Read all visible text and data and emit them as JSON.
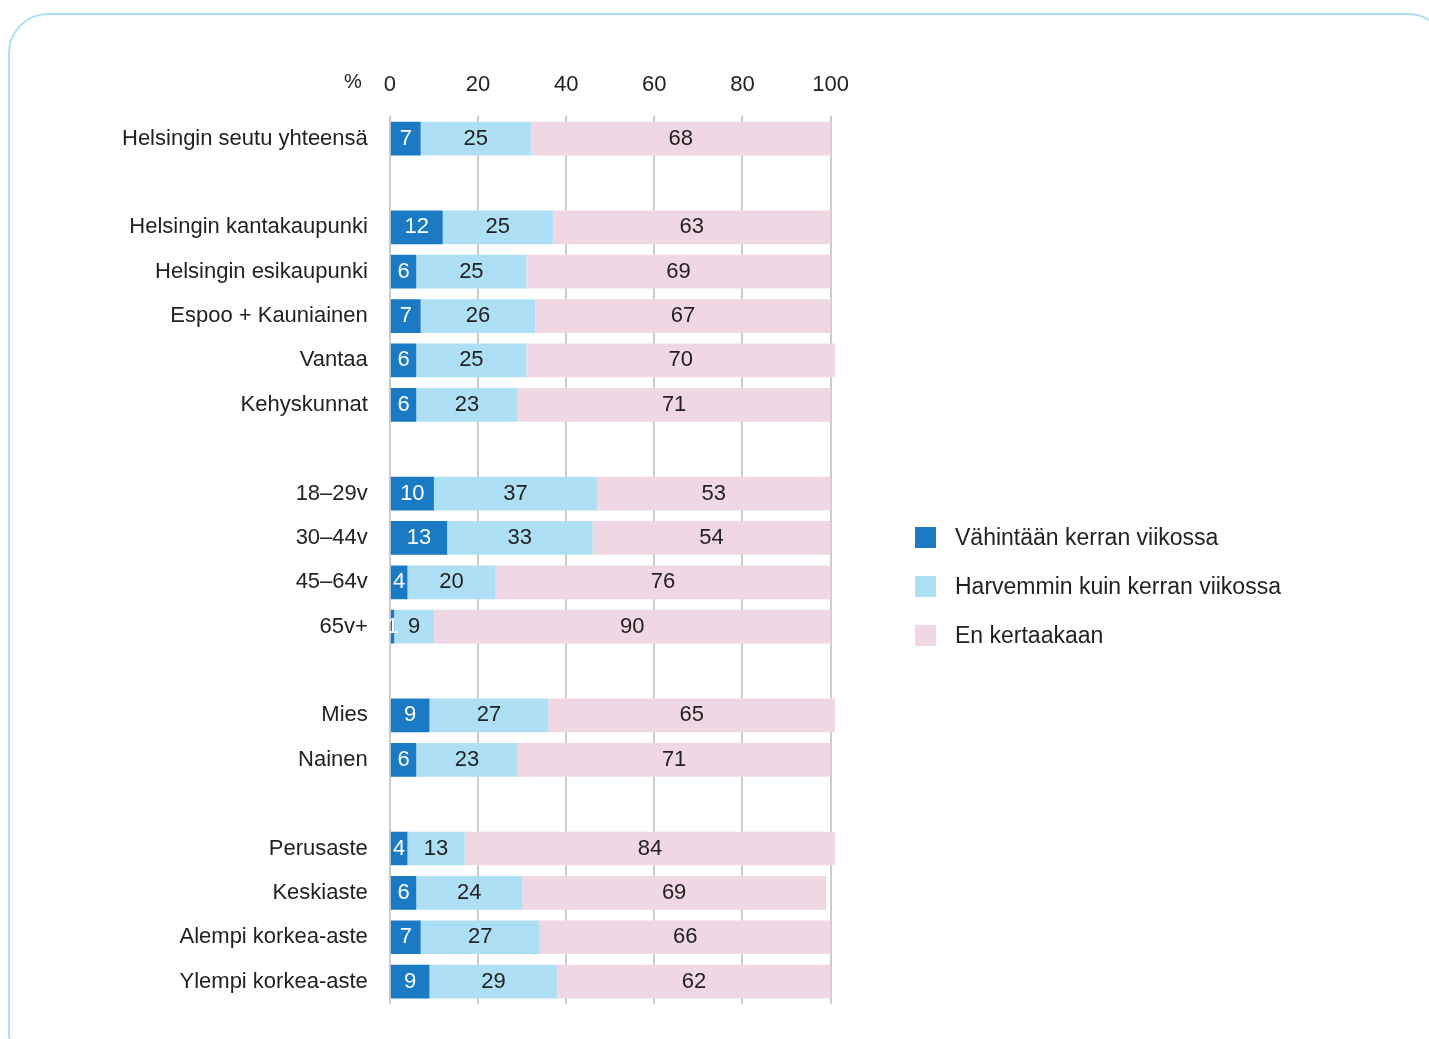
{
  "chart_data": {
    "type": "bar",
    "orientation": "horizontal",
    "stacked": true,
    "xlabel": "%",
    "categories": [
      "Helsingin seutu yhteensä",
      null,
      "Helsingin kantakaupunki",
      "Helsingin esikaupunki",
      "Espoo + Kauniainen",
      "Vantaa",
      "Kehyskunnat",
      null,
      "18–29v",
      "30–44v",
      "45–64v",
      "65v+",
      null,
      "Mies",
      "Nainen",
      null,
      "Perusaste",
      "Keskiaste",
      "Alempi korkea-aste",
      "Ylempi korkea-aste"
    ],
    "series": [
      {
        "name": "Vähintään kerran viikossa",
        "color": "#1a7ac4",
        "values": [
          7,
          null,
          12,
          6,
          7,
          6,
          6,
          null,
          10,
          13,
          4,
          1,
          null,
          9,
          6,
          null,
          4,
          6,
          7,
          9
        ]
      },
      {
        "name": "Harvemmin kuin kerran viikossa",
        "color": "#aee0f5",
        "values": [
          25,
          null,
          25,
          25,
          26,
          25,
          23,
          null,
          37,
          33,
          20,
          9,
          null,
          27,
          23,
          null,
          13,
          24,
          27,
          29
        ]
      },
      {
        "name": "En kertaakaan",
        "color": "#f0d7e4",
        "values": [
          68,
          null,
          63,
          69,
          67,
          70,
          71,
          null,
          53,
          54,
          76,
          90,
          null,
          65,
          71,
          null,
          84,
          69,
          66,
          62
        ]
      }
    ],
    "xlim": [
      0,
      101
    ],
    "xticks": [
      0,
      20,
      40,
      60,
      80,
      100
    ],
    "grid": "x",
    "legend": "right",
    "data_labels": true
  }
}
